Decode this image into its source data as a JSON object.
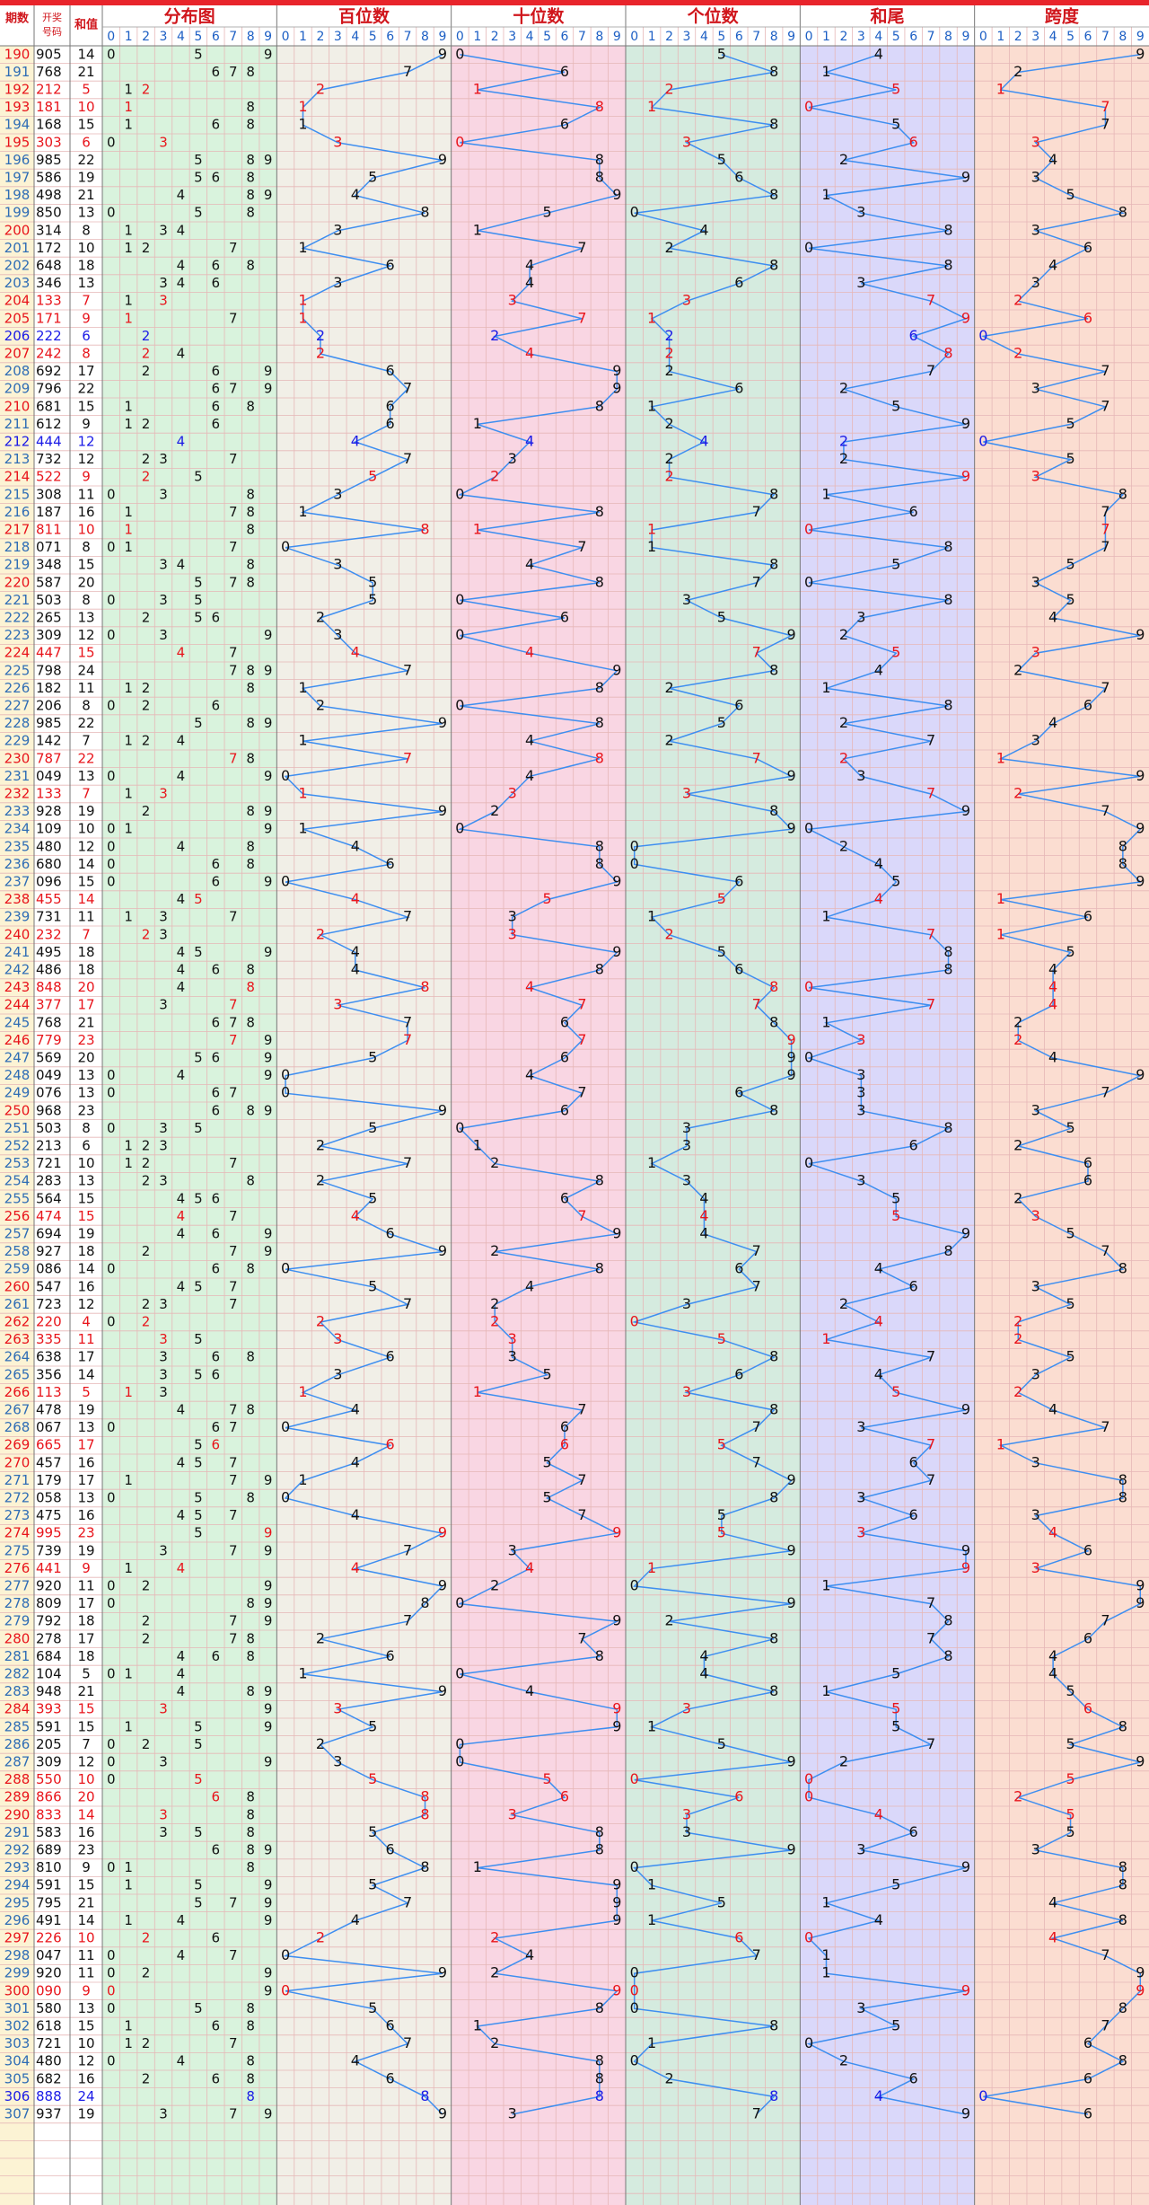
{
  "header": {
    "issue": "期数",
    "draw": [
      "开奖",
      "号码"
    ],
    "sum": "和值",
    "blocks": [
      "分布图",
      "百位数",
      "十位数",
      "个位数",
      "和尾",
      "跨度"
    ],
    "digits": [
      "0",
      "1",
      "2",
      "3",
      "4",
      "5",
      "6",
      "7",
      "8",
      "9"
    ]
  },
  "rows": [
    [
      190,
      "905",
      14,
      9,
      0,
      5,
      4,
      9
    ],
    [
      191,
      "768",
      21,
      7,
      6,
      8,
      1,
      2
    ],
    [
      192,
      "212",
      5,
      2,
      1,
      2,
      5,
      1
    ],
    [
      193,
      "181",
      10,
      1,
      8,
      1,
      0,
      7
    ],
    [
      194,
      "168",
      15,
      1,
      6,
      8,
      5,
      7
    ],
    [
      195,
      "303",
      6,
      3,
      0,
      3,
      6,
      3
    ],
    [
      196,
      "985",
      22,
      9,
      8,
      5,
      2,
      4
    ],
    [
      197,
      "586",
      19,
      5,
      8,
      6,
      9,
      3
    ],
    [
      198,
      "498",
      21,
      4,
      9,
      8,
      1,
      5
    ],
    [
      199,
      "850",
      13,
      8,
      5,
      0,
      3,
      8
    ],
    [
      200,
      "314",
      8,
      3,
      1,
      4,
      8,
      3
    ],
    [
      201,
      "172",
      10,
      1,
      7,
      2,
      0,
      6
    ],
    [
      202,
      "648",
      18,
      6,
      4,
      8,
      8,
      4
    ],
    [
      203,
      "346",
      13,
      3,
      4,
      6,
      3,
      3
    ],
    [
      204,
      "133",
      7,
      1,
      3,
      3,
      7,
      2
    ],
    [
      205,
      "171",
      9,
      1,
      7,
      1,
      9,
      6
    ],
    [
      206,
      "222",
      6,
      2,
      2,
      2,
      6,
      0
    ],
    [
      207,
      "242",
      8,
      2,
      4,
      2,
      8,
      2
    ],
    [
      208,
      "692",
      17,
      6,
      9,
      2,
      7,
      7
    ],
    [
      209,
      "796",
      22,
      7,
      9,
      6,
      2,
      3
    ],
    [
      210,
      "681",
      15,
      6,
      8,
      1,
      5,
      7
    ],
    [
      211,
      "612",
      9,
      6,
      1,
      2,
      9,
      5
    ],
    [
      212,
      "444",
      12,
      4,
      4,
      4,
      2,
      0
    ],
    [
      213,
      "732",
      12,
      7,
      3,
      2,
      2,
      5
    ],
    [
      214,
      "522",
      9,
      5,
      2,
      2,
      9,
      3
    ],
    [
      215,
      "308",
      11,
      3,
      0,
      8,
      1,
      8
    ],
    [
      216,
      "187",
      16,
      1,
      8,
      7,
      6,
      7
    ],
    [
      217,
      "811",
      10,
      8,
      1,
      1,
      0,
      7
    ],
    [
      218,
      "071",
      8,
      0,
      7,
      1,
      8,
      7
    ],
    [
      219,
      "348",
      15,
      3,
      4,
      8,
      5,
      5
    ],
    [
      220,
      "587",
      20,
      5,
      8,
      7,
      0,
      3
    ],
    [
      221,
      "503",
      8,
      5,
      0,
      3,
      8,
      5
    ],
    [
      222,
      "265",
      13,
      2,
      6,
      5,
      3,
      4
    ],
    [
      223,
      "309",
      12,
      3,
      0,
      9,
      2,
      9
    ],
    [
      224,
      "447",
      15,
      4,
      4,
      7,
      5,
      3
    ],
    [
      225,
      "798",
      24,
      7,
      9,
      8,
      4,
      2
    ],
    [
      226,
      "182",
      11,
      1,
      8,
      2,
      1,
      7
    ],
    [
      227,
      "206",
      8,
      2,
      0,
      6,
      8,
      6
    ],
    [
      228,
      "985",
      22,
      9,
      8,
      5,
      2,
      4
    ],
    [
      229,
      "142",
      7,
      1,
      4,
      2,
      7,
      3
    ],
    [
      230,
      "787",
      22,
      7,
      8,
      7,
      2,
      1
    ],
    [
      231,
      "049",
      13,
      0,
      4,
      9,
      3,
      9
    ],
    [
      232,
      "133",
      7,
      1,
      3,
      3,
      7,
      2
    ],
    [
      233,
      "928",
      19,
      9,
      2,
      8,
      9,
      7
    ],
    [
      234,
      "109",
      10,
      1,
      0,
      9,
      0,
      9
    ],
    [
      235,
      "480",
      12,
      4,
      8,
      0,
      2,
      8
    ],
    [
      236,
      "680",
      14,
      6,
      8,
      0,
      4,
      8
    ],
    [
      237,
      "096",
      15,
      0,
      9,
      6,
      5,
      9
    ],
    [
      238,
      "455",
      14,
      4,
      5,
      5,
      4,
      1
    ],
    [
      239,
      "731",
      11,
      7,
      3,
      1,
      1,
      6
    ],
    [
      240,
      "232",
      7,
      2,
      3,
      2,
      7,
      1
    ],
    [
      241,
      "495",
      18,
      4,
      9,
      5,
      8,
      5
    ],
    [
      242,
      "486",
      18,
      4,
      8,
      6,
      8,
      4
    ],
    [
      243,
      "848",
      20,
      8,
      4,
      8,
      0,
      4
    ],
    [
      244,
      "377",
      17,
      3,
      7,
      7,
      7,
      4
    ],
    [
      245,
      "768",
      21,
      7,
      6,
      8,
      1,
      2
    ],
    [
      246,
      "779",
      23,
      7,
      7,
      9,
      3,
      2
    ],
    [
      247,
      "569",
      20,
      5,
      6,
      9,
      0,
      4
    ],
    [
      248,
      "049",
      13,
      0,
      4,
      9,
      3,
      9
    ],
    [
      249,
      "076",
      13,
      0,
      7,
      6,
      3,
      7
    ],
    [
      250,
      "968",
      23,
      9,
      6,
      8,
      3,
      3
    ],
    [
      251,
      "503",
      8,
      5,
      0,
      3,
      8,
      5
    ],
    [
      252,
      "213",
      6,
      2,
      1,
      3,
      6,
      2
    ],
    [
      253,
      "721",
      10,
      7,
      2,
      1,
      0,
      6
    ],
    [
      254,
      "283",
      13,
      2,
      8,
      3,
      3,
      6
    ],
    [
      255,
      "564",
      15,
      5,
      6,
      4,
      5,
      2
    ],
    [
      256,
      "474",
      15,
      4,
      7,
      4,
      5,
      3
    ],
    [
      257,
      "694",
      19,
      6,
      9,
      4,
      9,
      5
    ],
    [
      258,
      "927",
      18,
      9,
      2,
      7,
      8,
      7
    ],
    [
      259,
      "086",
      14,
      0,
      8,
      6,
      4,
      8
    ],
    [
      260,
      "547",
      16,
      5,
      4,
      7,
      6,
      3
    ],
    [
      261,
      "723",
      12,
      7,
      2,
      3,
      2,
      5
    ],
    [
      262,
      "220",
      4,
      2,
      2,
      0,
      4,
      2
    ],
    [
      263,
      "335",
      11,
      3,
      3,
      5,
      1,
      2
    ],
    [
      264,
      "638",
      17,
      6,
      3,
      8,
      7,
      5
    ],
    [
      265,
      "356",
      14,
      3,
      5,
      6,
      4,
      3
    ],
    [
      266,
      "113",
      5,
      1,
      1,
      3,
      5,
      2
    ],
    [
      267,
      "478",
      19,
      4,
      7,
      8,
      9,
      4
    ],
    [
      268,
      "067",
      13,
      0,
      6,
      7,
      3,
      7
    ],
    [
      269,
      "665",
      17,
      6,
      6,
      5,
      7,
      1
    ],
    [
      270,
      "457",
      16,
      4,
      5,
      7,
      6,
      3
    ],
    [
      271,
      "179",
      17,
      1,
      7,
      9,
      7,
      8
    ],
    [
      272,
      "058",
      13,
      0,
      5,
      8,
      3,
      8
    ],
    [
      273,
      "475",
      16,
      4,
      7,
      5,
      6,
      3
    ],
    [
      274,
      "995",
      23,
      9,
      9,
      5,
      3,
      4
    ],
    [
      275,
      "739",
      19,
      7,
      3,
      9,
      9,
      6
    ],
    [
      276,
      "441",
      9,
      4,
      4,
      1,
      9,
      3
    ],
    [
      277,
      "920",
      11,
      9,
      2,
      0,
      1,
      9
    ],
    [
      278,
      "809",
      17,
      8,
      0,
      9,
      7,
      9
    ],
    [
      279,
      "792",
      18,
      7,
      9,
      2,
      8,
      7
    ],
    [
      280,
      "278",
      17,
      2,
      7,
      8,
      7,
      6
    ],
    [
      281,
      "684",
      18,
      6,
      8,
      4,
      8,
      4
    ],
    [
      282,
      "104",
      5,
      1,
      0,
      4,
      5,
      4
    ],
    [
      283,
      "948",
      21,
      9,
      4,
      8,
      1,
      5
    ],
    [
      284,
      "393",
      15,
      3,
      9,
      3,
      5,
      6
    ],
    [
      285,
      "591",
      15,
      5,
      9,
      1,
      5,
      8
    ],
    [
      286,
      "205",
      7,
      2,
      0,
      5,
      7,
      5
    ],
    [
      287,
      "309",
      12,
      3,
      0,
      9,
      2,
      9
    ],
    [
      288,
      "550",
      10,
      5,
      5,
      0,
      0,
      5
    ],
    [
      289,
      "866",
      20,
      8,
      6,
      6,
      0,
      2
    ],
    [
      290,
      "833",
      14,
      8,
      3,
      3,
      4,
      5
    ],
    [
      291,
      "583",
      16,
      5,
      8,
      3,
      6,
      5
    ],
    [
      292,
      "689",
      23,
      6,
      8,
      9,
      3,
      3
    ],
    [
      293,
      "810",
      9,
      8,
      1,
      0,
      9,
      8
    ],
    [
      294,
      "591",
      15,
      5,
      9,
      1,
      5,
      8
    ],
    [
      295,
      "795",
      21,
      7,
      9,
      5,
      1,
      4
    ],
    [
      296,
      "491",
      14,
      4,
      9,
      1,
      4,
      8
    ],
    [
      297,
      "226",
      10,
      2,
      2,
      6,
      0,
      4
    ],
    [
      298,
      "047",
      11,
      0,
      4,
      7,
      1,
      7
    ],
    [
      299,
      "920",
      11,
      9,
      2,
      0,
      1,
      9
    ],
    [
      300,
      "090",
      9,
      0,
      9,
      0,
      9,
      9
    ],
    [
      301,
      "580",
      13,
      5,
      8,
      0,
      3,
      8
    ],
    [
      302,
      "618",
      15,
      6,
      1,
      8,
      5,
      7
    ],
    [
      303,
      "721",
      10,
      7,
      2,
      1,
      0,
      6
    ],
    [
      304,
      "480",
      12,
      4,
      8,
      0,
      2,
      8
    ],
    [
      305,
      "682",
      16,
      6,
      8,
      2,
      6,
      6
    ],
    [
      306,
      "888",
      24,
      8,
      8,
      8,
      4,
      0
    ],
    [
      307,
      "937",
      19,
      9,
      3,
      7,
      9,
      6
    ]
  ]
}
